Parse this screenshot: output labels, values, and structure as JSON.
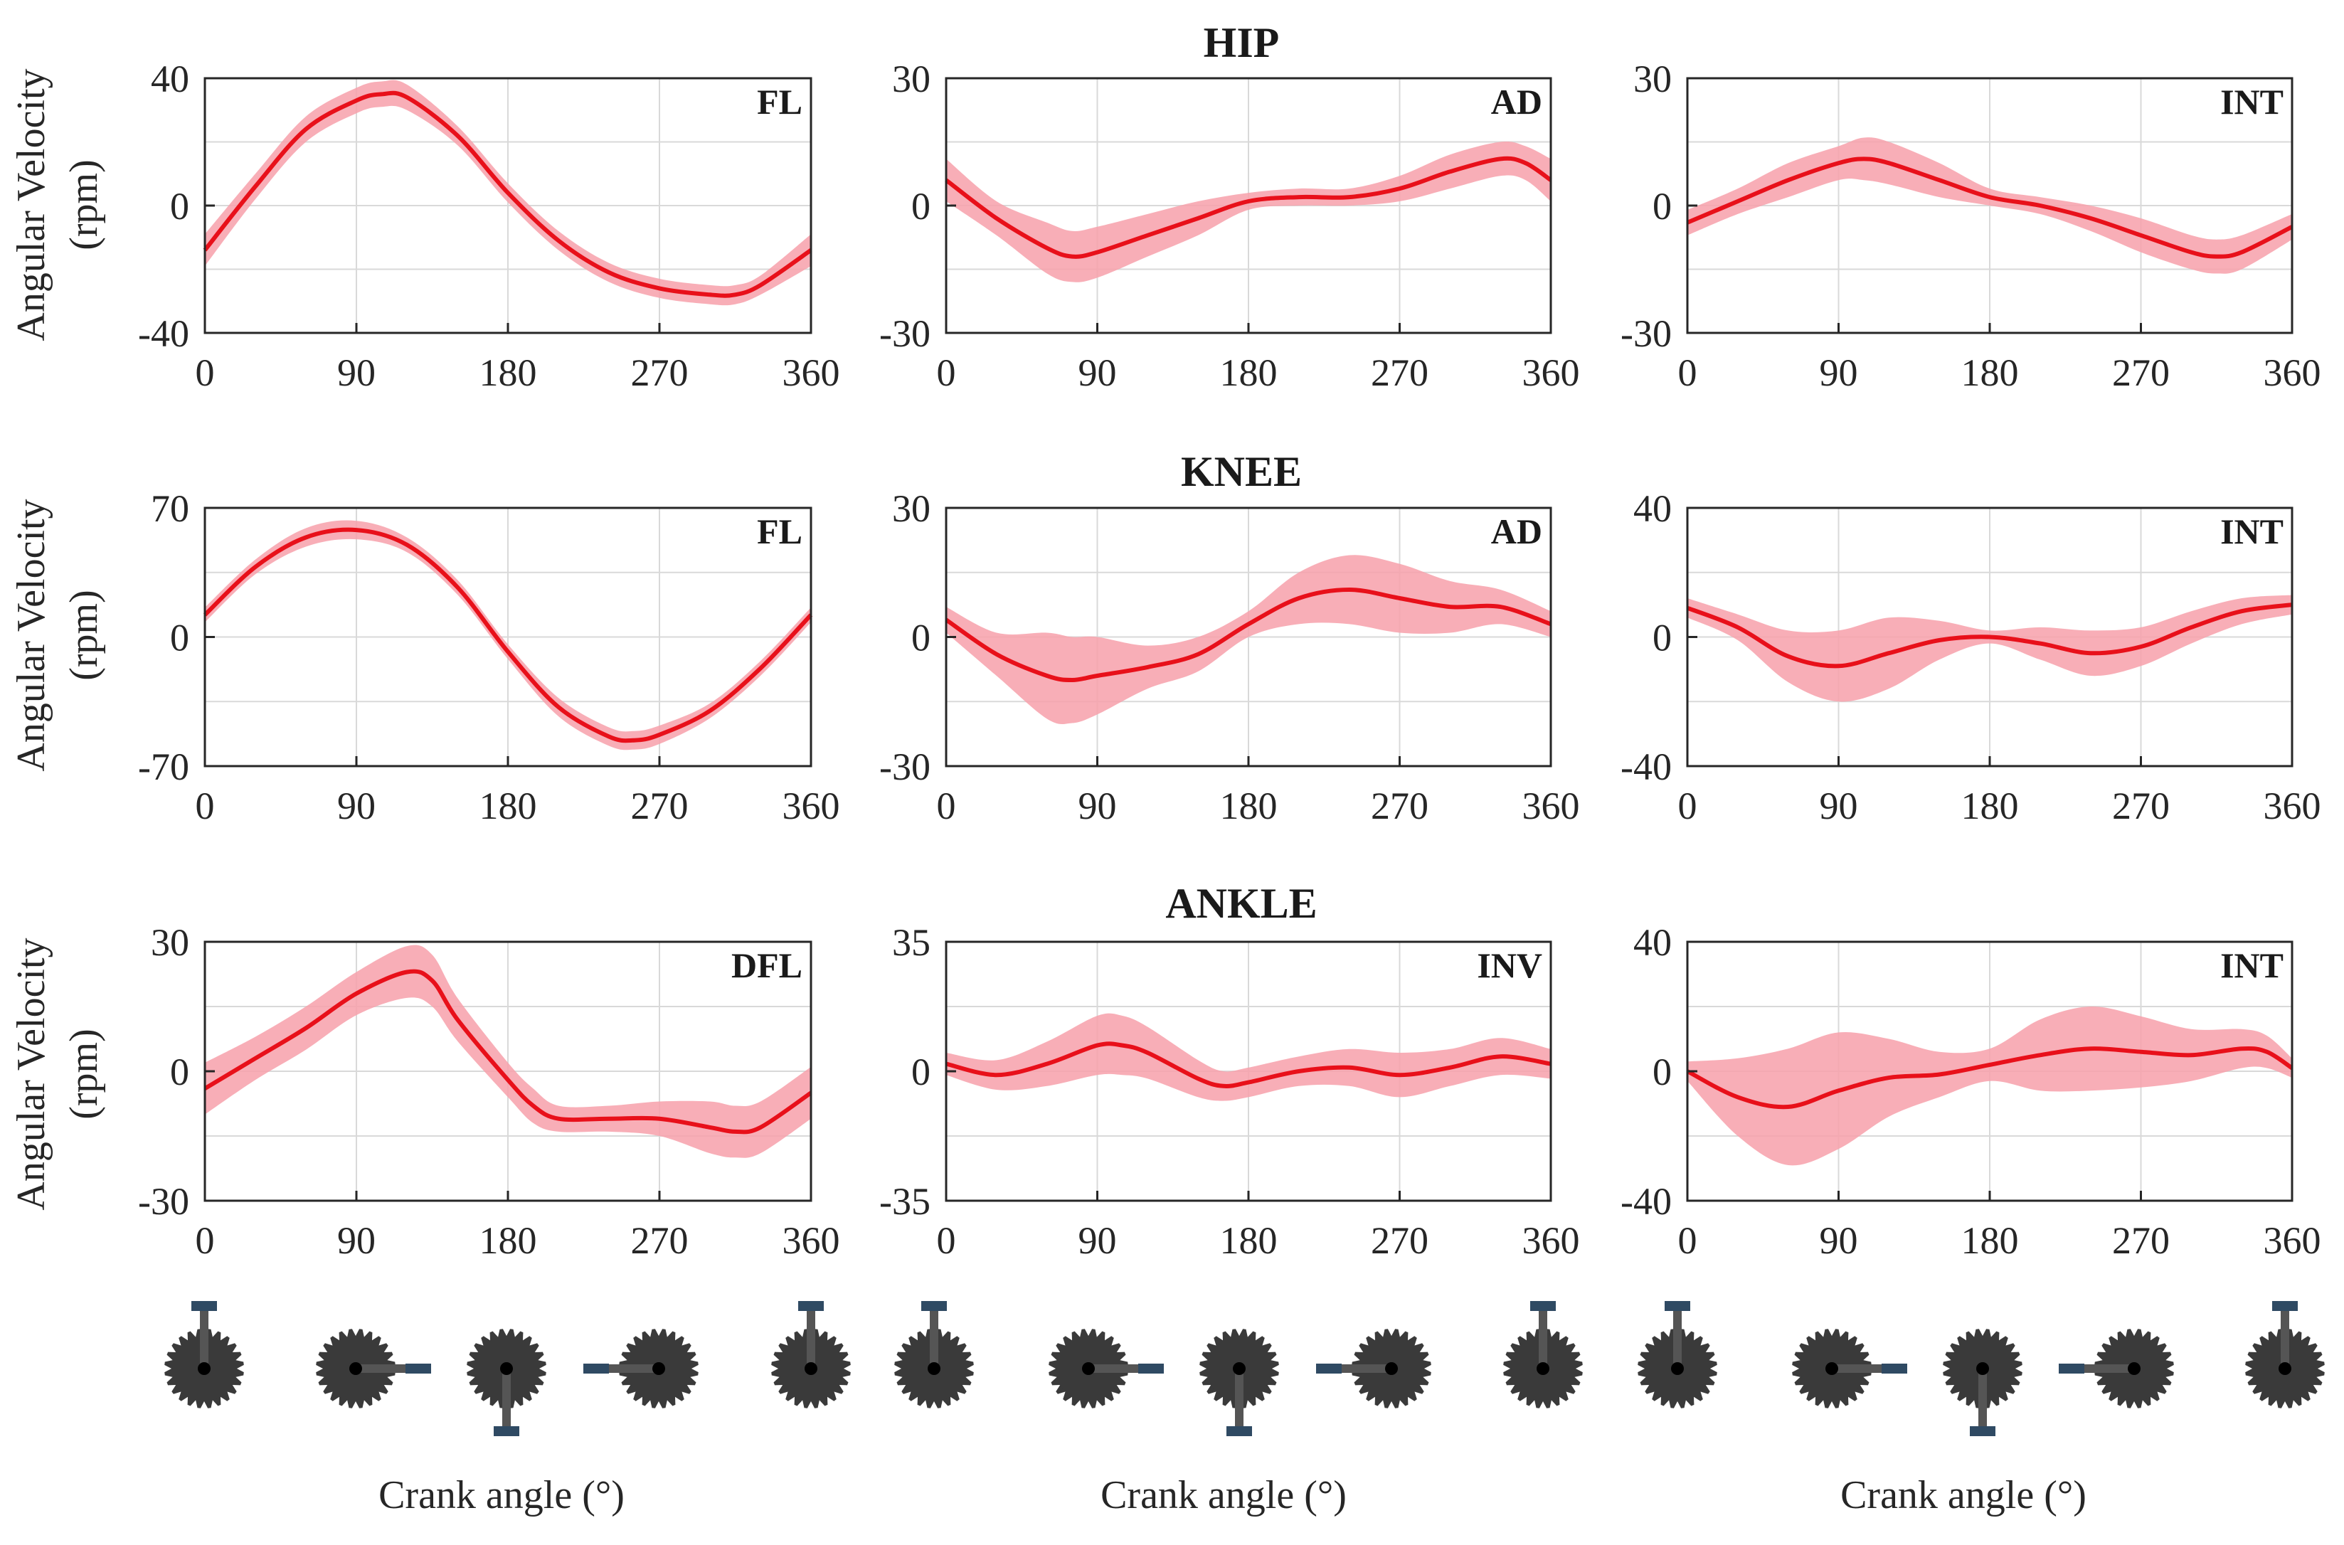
{
  "figure": {
    "ylabel_line1": "Angular Velocity",
    "ylabel_line2": "(rpm)",
    "xlabel": "Crank angle (°)",
    "colors": {
      "mean_line": "#e8101a",
      "band": "#f7a0aa",
      "grid": "#d9d9d9",
      "axis": "#262626",
      "gear": "#3a3a3a",
      "crank": "#555555",
      "pedal": "#2f4a63"
    },
    "crank_icons": [
      "crank-up-icon",
      "crank-right-icon",
      "crank-down-icon",
      "crank-left-icon",
      "crank-up-icon"
    ]
  },
  "rows": [
    {
      "joint": "HIP"
    },
    {
      "joint": "KNEE"
    },
    {
      "joint": "ANKLE"
    }
  ],
  "chart_data": [
    {
      "type": "line",
      "joint": "HIP",
      "label": "FL",
      "row": 0,
      "col": 0,
      "x": [
        0,
        30,
        60,
        90,
        105,
        120,
        150,
        180,
        210,
        240,
        270,
        300,
        315,
        330,
        360
      ],
      "y": [
        -14,
        6,
        24,
        33,
        35,
        34,
        22,
        4,
        -11,
        -21,
        -26,
        -28,
        -28,
        -25,
        -14
      ],
      "band": [
        5,
        4,
        4,
        4,
        4,
        4,
        3,
        3,
        3,
        3,
        3,
        3,
        3,
        3,
        5
      ],
      "ylim": [
        -40,
        40
      ],
      "yticks": [
        -40,
        0,
        40
      ],
      "xlim": [
        0,
        360
      ],
      "xticks": [
        0,
        90,
        180,
        270,
        360
      ],
      "grid": true
    },
    {
      "type": "line",
      "joint": "HIP",
      "label": "AD",
      "row": 0,
      "col": 1,
      "x": [
        0,
        30,
        60,
        75,
        90,
        120,
        150,
        180,
        210,
        240,
        270,
        300,
        330,
        345,
        360
      ],
      "y": [
        6,
        -3,
        -10,
        -12,
        -11,
        -7,
        -3,
        1,
        2,
        2,
        4,
        8,
        11,
        10,
        6
      ],
      "band": [
        5,
        4,
        6,
        6,
        6,
        5,
        4,
        2,
        2,
        2,
        3,
        4,
        4,
        4,
        5
      ],
      "ylim": [
        -30,
        30
      ],
      "yticks": [
        -30,
        0,
        30
      ],
      "xlim": [
        0,
        360
      ],
      "xticks": [
        0,
        90,
        180,
        270,
        360
      ],
      "grid": true
    },
    {
      "type": "line",
      "joint": "HIP",
      "label": "INT",
      "row": 0,
      "col": 2,
      "x": [
        0,
        30,
        60,
        90,
        105,
        120,
        150,
        180,
        210,
        240,
        270,
        300,
        315,
        330,
        360
      ],
      "y": [
        -4,
        1,
        6,
        10,
        11,
        10,
        6,
        2,
        0,
        -3,
        -7,
        -11,
        -12,
        -11,
        -5
      ],
      "band": [
        3,
        3,
        4,
        4,
        5,
        5,
        4,
        2,
        2,
        3,
        4,
        4,
        4,
        4,
        3
      ],
      "ylim": [
        -30,
        30
      ],
      "yticks": [
        -30,
        0,
        30
      ],
      "xlim": [
        0,
        360
      ],
      "xticks": [
        0,
        90,
        180,
        270,
        360
      ],
      "grid": true
    },
    {
      "type": "line",
      "joint": "KNEE",
      "label": "FL",
      "row": 1,
      "col": 0,
      "x": [
        0,
        30,
        60,
        90,
        120,
        150,
        180,
        210,
        240,
        255,
        270,
        300,
        330,
        360
      ],
      "y": [
        12,
        38,
        54,
        58,
        50,
        27,
        -8,
        -38,
        -54,
        -56,
        -53,
        -40,
        -17,
        12
      ],
      "band": [
        4,
        4,
        5,
        5,
        4,
        4,
        4,
        5,
        5,
        5,
        5,
        4,
        4,
        4
      ],
      "ylim": [
        -70,
        70
      ],
      "yticks": [
        -70,
        0,
        70
      ],
      "xlim": [
        0,
        360
      ],
      "xticks": [
        0,
        90,
        180,
        270,
        360
      ],
      "grid": true
    },
    {
      "type": "line",
      "joint": "KNEE",
      "label": "AD",
      "row": 1,
      "col": 1,
      "x": [
        0,
        30,
        60,
        75,
        90,
        120,
        150,
        180,
        210,
        240,
        270,
        300,
        330,
        360
      ],
      "y": [
        4,
        -4,
        -9,
        -10,
        -9,
        -7,
        -4,
        3,
        9,
        11,
        9,
        7,
        7,
        3
      ],
      "band": [
        3,
        5,
        10,
        10,
        9,
        5,
        4,
        3,
        6,
        8,
        8,
        6,
        4,
        3
      ],
      "ylim": [
        -30,
        30
      ],
      "yticks": [
        -30,
        0,
        30
      ],
      "xlim": [
        0,
        360
      ],
      "xticks": [
        0,
        90,
        180,
        270,
        360
      ],
      "grid": true
    },
    {
      "type": "line",
      "joint": "KNEE",
      "label": "INT",
      "row": 1,
      "col": 2,
      "x": [
        0,
        30,
        60,
        90,
        120,
        150,
        180,
        210,
        240,
        270,
        300,
        330,
        360
      ],
      "y": [
        9,
        3,
        -6,
        -9,
        -5,
        -1,
        0,
        -2,
        -5,
        -3,
        3,
        8,
        10
      ],
      "band": [
        3,
        4,
        8,
        11,
        11,
        6,
        2,
        5,
        7,
        6,
        5,
        4,
        3
      ],
      "ylim": [
        -40,
        40
      ],
      "yticks": [
        -40,
        0,
        40
      ],
      "xlim": [
        0,
        360
      ],
      "xticks": [
        0,
        90,
        180,
        270,
        360
      ],
      "grid": true
    },
    {
      "type": "line",
      "joint": "ANKLE",
      "label": "DFL",
      "row": 2,
      "col": 0,
      "x": [
        0,
        30,
        60,
        90,
        120,
        135,
        150,
        180,
        195,
        210,
        240,
        270,
        300,
        315,
        330,
        360
      ],
      "y": [
        -4,
        3,
        10,
        18,
        23,
        21,
        12,
        -2,
        -8,
        -11,
        -11,
        -11,
        -13,
        -14,
        -13,
        -5
      ],
      "band": [
        6,
        5,
        5,
        5,
        6,
        6,
        5,
        4,
        4,
        3,
        3,
        4,
        6,
        6,
        6,
        6
      ],
      "ylim": [
        -30,
        30
      ],
      "yticks": [
        -30,
        0,
        30
      ],
      "xlim": [
        0,
        360
      ],
      "xticks": [
        0,
        90,
        180,
        270,
        360
      ],
      "grid": true
    },
    {
      "type": "line",
      "joint": "ANKLE",
      "label": "INV",
      "row": 2,
      "col": 1,
      "x": [
        0,
        30,
        60,
        90,
        105,
        120,
        150,
        165,
        180,
        210,
        240,
        270,
        300,
        330,
        360
      ],
      "y": [
        2,
        -1,
        2,
        7,
        7,
        5,
        -2,
        -4,
        -3,
        0,
        1,
        -1,
        1,
        4,
        2
      ],
      "band": [
        3,
        4,
        6,
        8,
        8,
        7,
        5,
        4,
        4,
        4,
        5,
        6,
        5,
        5,
        4
      ],
      "ylim": [
        -35,
        35
      ],
      "yticks": [
        -35,
        0,
        35
      ],
      "xlim": [
        0,
        360
      ],
      "xticks": [
        0,
        90,
        180,
        270,
        360
      ],
      "grid": true
    },
    {
      "type": "line",
      "joint": "ANKLE",
      "label": "INT",
      "row": 2,
      "col": 2,
      "x": [
        0,
        30,
        60,
        90,
        120,
        150,
        180,
        210,
        240,
        270,
        300,
        330,
        345,
        360
      ],
      "y": [
        0,
        -8,
        -11,
        -6,
        -2,
        -1,
        2,
        5,
        7,
        6,
        5,
        7,
        6,
        1
      ],
      "band": [
        3,
        12,
        18,
        18,
        12,
        7,
        5,
        11,
        13,
        11,
        8,
        6,
        5,
        3
      ],
      "ylim": [
        -40,
        40
      ],
      "yticks": [
        -40,
        0,
        40
      ],
      "xlim": [
        0,
        360
      ],
      "xticks": [
        0,
        90,
        180,
        270,
        360
      ],
      "grid": true
    }
  ]
}
